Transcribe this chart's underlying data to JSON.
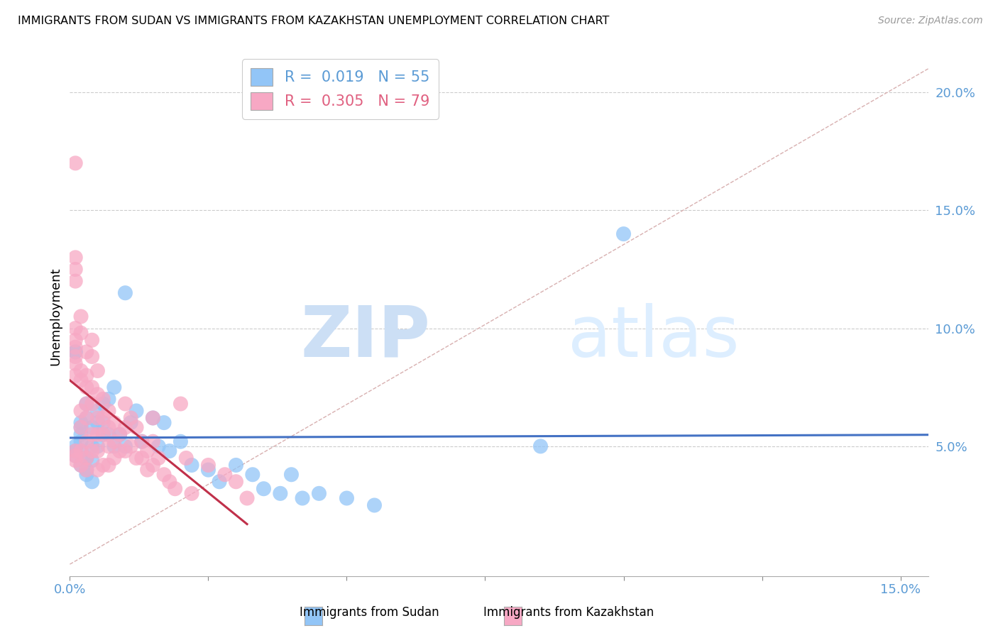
{
  "title": "IMMIGRANTS FROM SUDAN VS IMMIGRANTS FROM KAZAKHSTAN UNEMPLOYMENT CORRELATION CHART",
  "source": "Source: ZipAtlas.com",
  "ylabel": "Unemployment",
  "xlim": [
    0.0,
    0.155
  ],
  "ylim": [
    -0.005,
    0.215
  ],
  "legend1_r": "0.019",
  "legend1_n": "55",
  "legend2_r": "0.305",
  "legend2_n": "79",
  "color_sudan": "#92c5f7",
  "color_kazakhstan": "#f7a8c4",
  "color_line_sudan": "#4472c4",
  "color_line_kazakhstan": "#c0304a",
  "color_diag": "#d8b0b0",
  "sudan_x": [
    0.001,
    0.001,
    0.001,
    0.001,
    0.001,
    0.002,
    0.002,
    0.002,
    0.002,
    0.002,
    0.002,
    0.003,
    0.003,
    0.003,
    0.003,
    0.003,
    0.004,
    0.004,
    0.004,
    0.004,
    0.005,
    0.005,
    0.005,
    0.006,
    0.006,
    0.006,
    0.007,
    0.007,
    0.008,
    0.008,
    0.009,
    0.01,
    0.01,
    0.011,
    0.012,
    0.013,
    0.015,
    0.016,
    0.017,
    0.018,
    0.02,
    0.022,
    0.025,
    0.027,
    0.03,
    0.033,
    0.035,
    0.038,
    0.04,
    0.042,
    0.045,
    0.05,
    0.055,
    0.085,
    0.1
  ],
  "sudan_y": [
    0.09,
    0.09,
    0.05,
    0.046,
    0.048,
    0.055,
    0.052,
    0.048,
    0.06,
    0.058,
    0.042,
    0.062,
    0.068,
    0.045,
    0.04,
    0.038,
    0.058,
    0.05,
    0.044,
    0.035,
    0.06,
    0.05,
    0.065,
    0.068,
    0.06,
    0.055,
    0.07,
    0.055,
    0.075,
    0.05,
    0.055,
    0.115,
    0.05,
    0.06,
    0.065,
    0.052,
    0.062,
    0.05,
    0.06,
    0.048,
    0.052,
    0.042,
    0.04,
    0.035,
    0.042,
    0.038,
    0.032,
    0.03,
    0.038,
    0.028,
    0.03,
    0.028,
    0.025,
    0.05,
    0.14
  ],
  "kazakhstan_x": [
    0.001,
    0.001,
    0.001,
    0.001,
    0.001,
    0.001,
    0.001,
    0.001,
    0.001,
    0.001,
    0.001,
    0.001,
    0.001,
    0.002,
    0.002,
    0.002,
    0.002,
    0.002,
    0.002,
    0.002,
    0.002,
    0.003,
    0.003,
    0.003,
    0.003,
    0.003,
    0.003,
    0.003,
    0.003,
    0.004,
    0.004,
    0.004,
    0.004,
    0.004,
    0.004,
    0.005,
    0.005,
    0.005,
    0.005,
    0.005,
    0.005,
    0.006,
    0.006,
    0.006,
    0.006,
    0.007,
    0.007,
    0.007,
    0.007,
    0.008,
    0.008,
    0.008,
    0.009,
    0.009,
    0.01,
    0.01,
    0.01,
    0.011,
    0.011,
    0.012,
    0.012,
    0.013,
    0.013,
    0.014,
    0.014,
    0.015,
    0.015,
    0.015,
    0.016,
    0.017,
    0.018,
    0.019,
    0.02,
    0.021,
    0.022,
    0.025,
    0.028,
    0.03,
    0.032
  ],
  "kazakhstan_y": [
    0.17,
    0.13,
    0.125,
    0.12,
    0.1,
    0.095,
    0.092,
    0.088,
    0.085,
    0.08,
    0.048,
    0.046,
    0.044,
    0.105,
    0.098,
    0.082,
    0.078,
    0.065,
    0.058,
    0.048,
    0.042,
    0.09,
    0.08,
    0.075,
    0.068,
    0.062,
    0.052,
    0.045,
    0.04,
    0.095,
    0.088,
    0.075,
    0.068,
    0.055,
    0.048,
    0.082,
    0.072,
    0.062,
    0.055,
    0.048,
    0.04,
    0.07,
    0.062,
    0.055,
    0.042,
    0.065,
    0.058,
    0.05,
    0.042,
    0.06,
    0.052,
    0.045,
    0.055,
    0.048,
    0.068,
    0.058,
    0.048,
    0.062,
    0.05,
    0.058,
    0.045,
    0.052,
    0.045,
    0.048,
    0.04,
    0.062,
    0.052,
    0.042,
    0.045,
    0.038,
    0.035,
    0.032,
    0.068,
    0.045,
    0.03,
    0.042,
    0.038,
    0.035,
    0.028
  ]
}
